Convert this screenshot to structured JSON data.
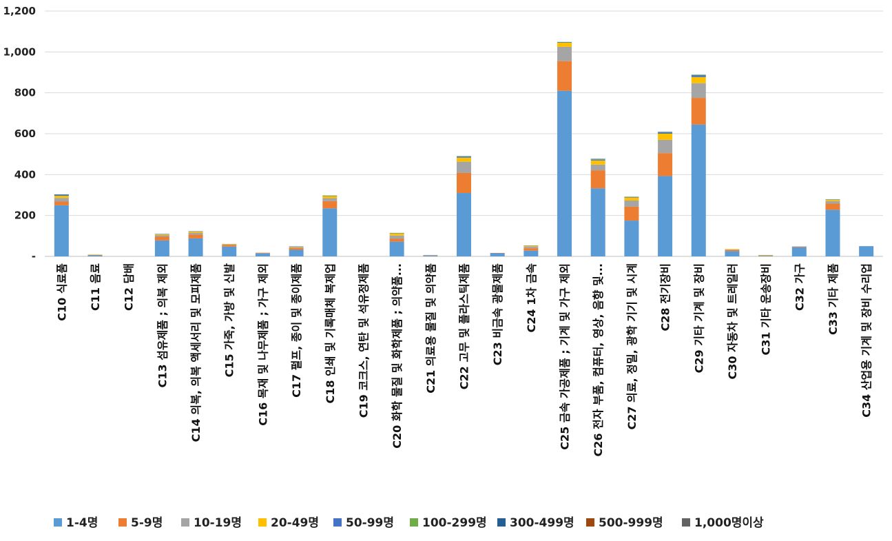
{
  "chart_data": {
    "type": "bar",
    "stacked": true,
    "title": "",
    "xlabel": "",
    "ylabel": "",
    "ylim": [
      0,
      1200
    ],
    "yticks": [
      0,
      200,
      400,
      600,
      800,
      1000,
      1200
    ],
    "ytick_labels": [
      "-",
      "200",
      "400",
      "600",
      "800",
      "1,000",
      "1,200"
    ],
    "grid": "horizontal",
    "legend_position": "bottom",
    "categories": [
      "C10 식료품",
      "C11 음료",
      "C12 담배",
      "C13 섬유제품 ; 의복 제외",
      "C14 의복, 의복 액세서리 및 모피제품",
      "C15 가죽, 가방 및 신발",
      "C16 목재 및 나무제품 ; 가구 제외",
      "C17 펄프, 종이 및 종이제품",
      "C18 인쇄 및 기록매체 복제업",
      "C19 코크스, 연탄 및 석유정제품",
      "C20 화학 물질 및 화학제품 ; 의약품...",
      "C21 의료용 물질 및 의약품",
      "C22 고무 및 플라스틱제품",
      "C23 비금속 광물제품",
      "C24 1차 금속",
      "C25 금속 가공제품 ; 기계 및 가구 제외",
      "C26 전자 부품, 컴퓨터, 영상, 음향 및...",
      "C27 의료, 정밀, 광학 기기 및 시계",
      "C28 전기장비",
      "C29 기타 기계 및 장비",
      "C30 자동차 및 트레일러",
      "C31 기타 운송장비",
      "C32 가구",
      "C33 기타 제품",
      "C34 산업용 기계 및 장비 수리업"
    ],
    "series": [
      {
        "name": "1-4명",
        "color": "#5b9bd5",
        "values": [
          250,
          5,
          0,
          78,
          88,
          48,
          14,
          32,
          235,
          0,
          72,
          4,
          310,
          16,
          28,
          810,
          333,
          175,
          393,
          645,
          25,
          3,
          45,
          228,
          50
        ]
      },
      {
        "name": "5-9명",
        "color": "#ed7d31",
        "values": [
          18,
          2,
          0,
          18,
          18,
          8,
          3,
          8,
          35,
          0,
          14,
          2,
          98,
          1,
          12,
          145,
          88,
          68,
          112,
          130,
          6,
          2,
          3,
          30,
          0
        ]
      },
      {
        "name": "10-19명",
        "color": "#a5a5a5",
        "values": [
          18,
          1,
          0,
          8,
          10,
          3,
          1,
          5,
          15,
          0,
          16,
          1,
          55,
          0,
          7,
          70,
          28,
          30,
          65,
          72,
          3,
          1,
          1,
          12,
          0
        ]
      },
      {
        "name": "20-49명",
        "color": "#ffc000",
        "values": [
          10,
          1,
          0,
          5,
          6,
          2,
          0,
          3,
          10,
          0,
          10,
          0,
          20,
          0,
          5,
          20,
          20,
          15,
          30,
          30,
          2,
          1,
          0,
          6,
          0
        ]
      },
      {
        "name": "50-99명",
        "color": "#4472c4",
        "values": [
          4,
          0,
          0,
          1,
          1,
          0,
          0,
          1,
          2,
          0,
          2,
          0,
          4,
          0,
          1,
          3,
          4,
          3,
          5,
          6,
          0,
          0,
          0,
          2,
          0
        ]
      },
      {
        "name": "100-299명",
        "color": "#70ad47",
        "values": [
          2,
          0,
          0,
          0,
          0,
          0,
          0,
          0,
          1,
          0,
          1,
          0,
          2,
          0,
          0,
          1,
          2,
          1,
          2,
          2,
          0,
          0,
          0,
          1,
          0
        ]
      },
      {
        "name": "300-499명",
        "color": "#255e91",
        "values": [
          1,
          0,
          0,
          0,
          0,
          0,
          0,
          0,
          0,
          0,
          0,
          0,
          1,
          0,
          0,
          0,
          2,
          0,
          2,
          3,
          0,
          0,
          0,
          0,
          0
        ]
      },
      {
        "name": "500-999명",
        "color": "#9e480e",
        "values": [
          0,
          0,
          0,
          0,
          0,
          0,
          0,
          0,
          0,
          0,
          0,
          0,
          0,
          0,
          0,
          0,
          0,
          0,
          0,
          0,
          0,
          0,
          0,
          0,
          0
        ]
      },
      {
        "name": "1,000명이상",
        "color": "#636363",
        "values": [
          0,
          0,
          0,
          0,
          0,
          0,
          0,
          0,
          0,
          0,
          0,
          0,
          0,
          0,
          0,
          0,
          0,
          0,
          0,
          0,
          0,
          0,
          0,
          0,
          0
        ]
      }
    ]
  }
}
